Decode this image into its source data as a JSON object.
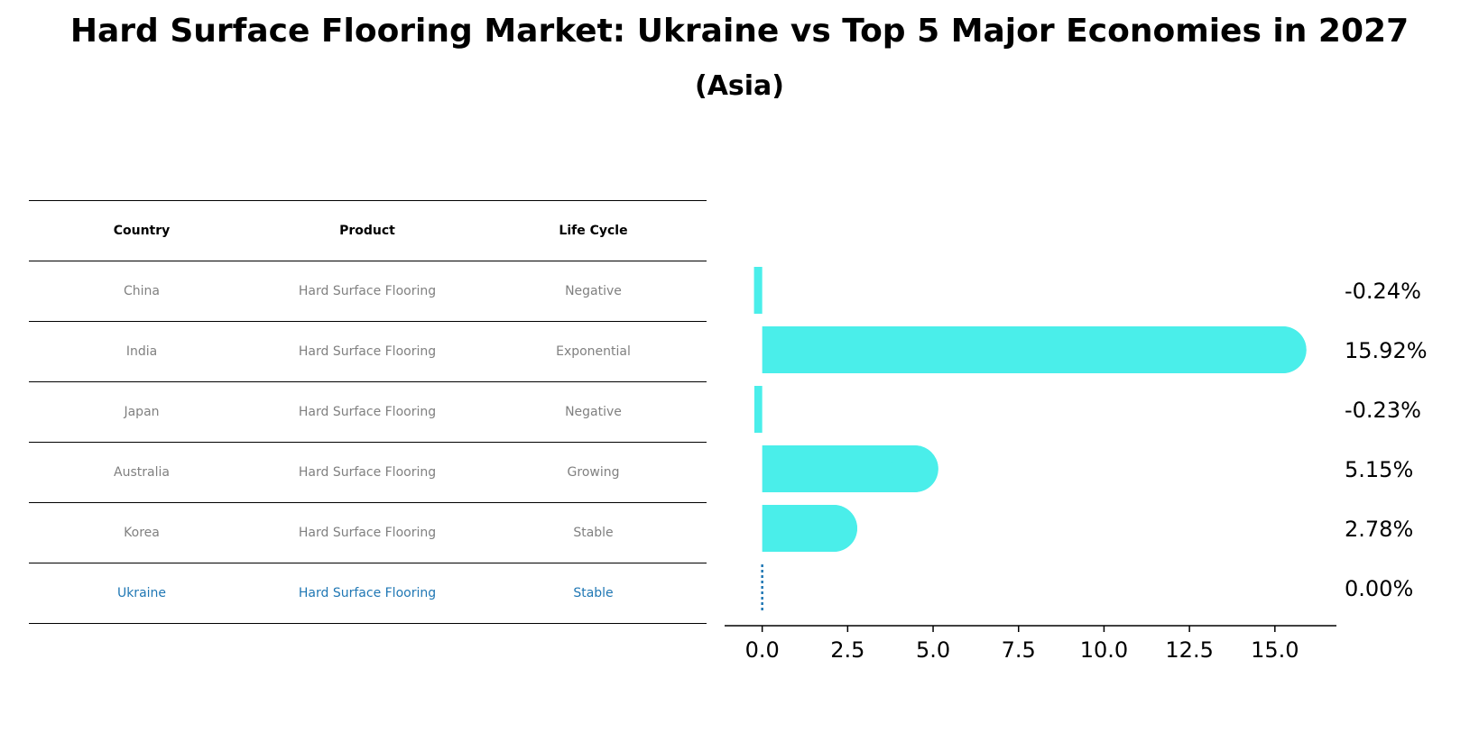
{
  "title": "Hard Surface Flooring Market: Ukraine vs Top 5 Major Economies in 2027",
  "subtitle": "(Asia)",
  "table": {
    "headers": [
      "Country",
      "Product",
      "Life Cycle"
    ],
    "rows": [
      {
        "country": "China",
        "product": "Hard Surface Flooring",
        "life_cycle": "Negative"
      },
      {
        "country": "India",
        "product": "Hard Surface Flooring",
        "life_cycle": "Exponential"
      },
      {
        "country": "Japan",
        "product": "Hard Surface Flooring",
        "life_cycle": "Negative"
      },
      {
        "country": "Australia",
        "product": "Hard Surface Flooring",
        "life_cycle": "Growing"
      },
      {
        "country": "Korea",
        "product": "Hard Surface Flooring",
        "life_cycle": "Stable"
      },
      {
        "country": "Ukraine",
        "product": "Hard Surface Flooring",
        "life_cycle": "Stable"
      }
    ]
  },
  "colors": {
    "bar": "#4aeeea",
    "highlight": "#1f77b4",
    "muted_text": "#808080"
  },
  "chart_data": {
    "type": "bar",
    "orientation": "horizontal",
    "categories": [
      "China",
      "India",
      "Japan",
      "Australia",
      "Korea",
      "Ukraine"
    ],
    "values": [
      -0.24,
      15.92,
      -0.23,
      5.15,
      2.78,
      0.0
    ],
    "value_labels": [
      "-0.24%",
      "15.92%",
      "-0.23%",
      "5.15%",
      "2.78%",
      "0.00%"
    ],
    "xlim": [
      -1.1,
      16.8
    ],
    "xticks": [
      0.0,
      2.5,
      5.0,
      7.5,
      10.0,
      12.5,
      15.0
    ],
    "xtick_labels": [
      "0.0",
      "2.5",
      "5.0",
      "7.5",
      "10.0",
      "12.5",
      "15.0"
    ],
    "title": "Hard Surface Flooring Market: Ukraine vs Top 5 Major Economies in 2027",
    "subtitle": "(Asia)",
    "xlabel": "",
    "ylabel": "",
    "highlight_category": "Ukraine"
  }
}
